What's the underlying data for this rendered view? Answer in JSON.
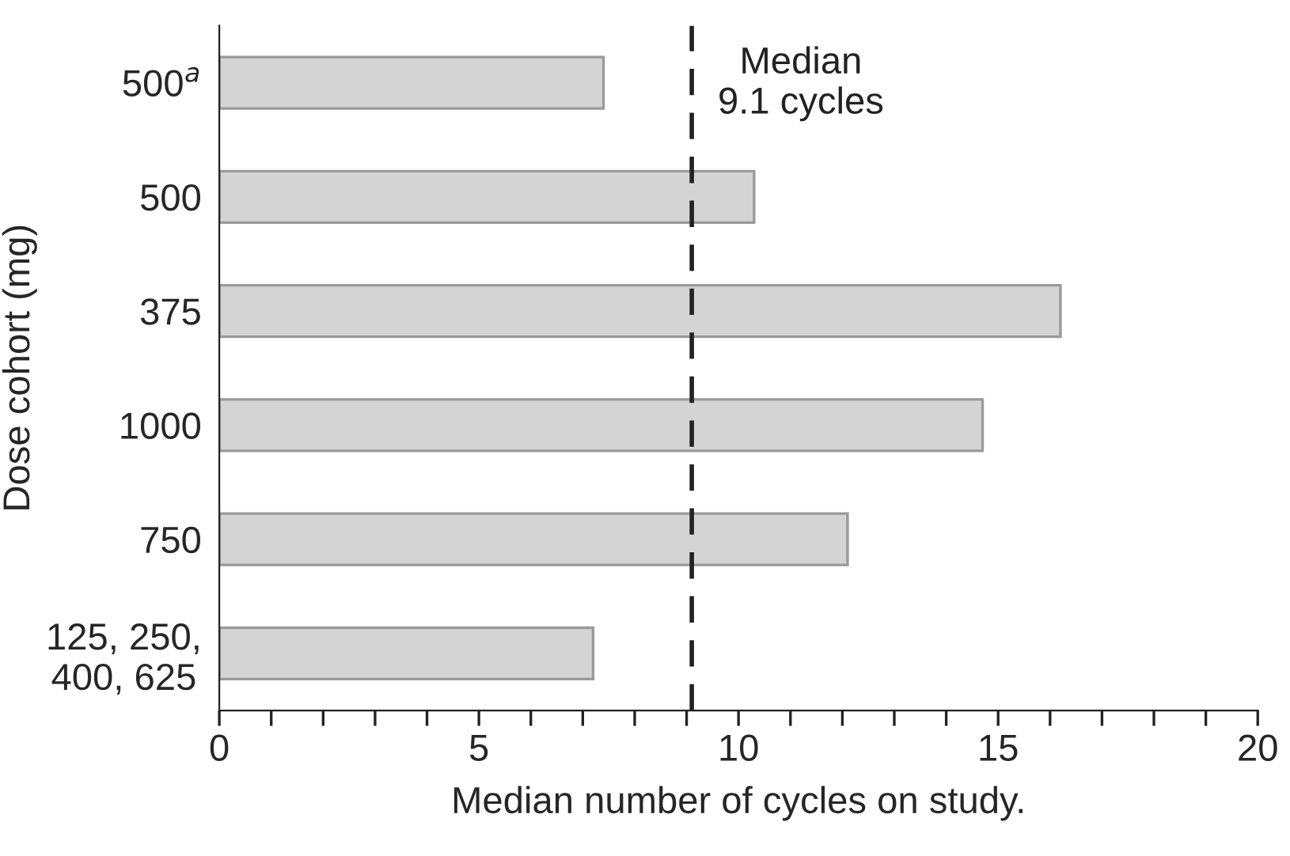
{
  "chart_data": {
    "type": "bar",
    "orientation": "horizontal",
    "categories": [
      "500$^{a}$",
      "500",
      "375",
      "1000",
      "750",
      "125, 250,\n400, 625"
    ],
    "values": [
      7.4,
      10.3,
      16.2,
      14.7,
      12.1,
      7.2
    ],
    "color": "#d4d4d4",
    "xlabel": "Median number of cycles on study.",
    "ylabel": "Dose cohort (mg)",
    "xlim": [
      0,
      20
    ],
    "xticks": [
      0,
      {
        "value": 1,
        "label": null
      },
      {
        "value": 2,
        "label": null
      },
      {
        "value": 3,
        "label": null
      },
      {
        "value": 4,
        "label": null
      },
      5,
      {
        "value": 6,
        "label": null
      },
      {
        "value": 7,
        "label": null
      },
      {
        "value": 8,
        "label": null
      },
      {
        "value": 9,
        "label": null
      },
      10,
      {
        "value": 11,
        "label": null
      },
      {
        "value": 12,
        "label": null
      },
      {
        "value": 13,
        "label": null
      },
      {
        "value": 14,
        "label": null
      },
      15,
      {
        "value": 16,
        "label": null
      },
      {
        "value": 17,
        "label": null
      },
      {
        "value": 18,
        "label": null
      },
      {
        "value": 19,
        "label": null
      },
      20
    ],
    "ref_lines": [
      {
        "axis": "x",
        "value": 9.1,
        "label": "Median\n9.1 cycles",
        "color": "#222222",
        "line_style": "dashed"
      }
    ],
    "grid": false,
    "legend": false
  }
}
